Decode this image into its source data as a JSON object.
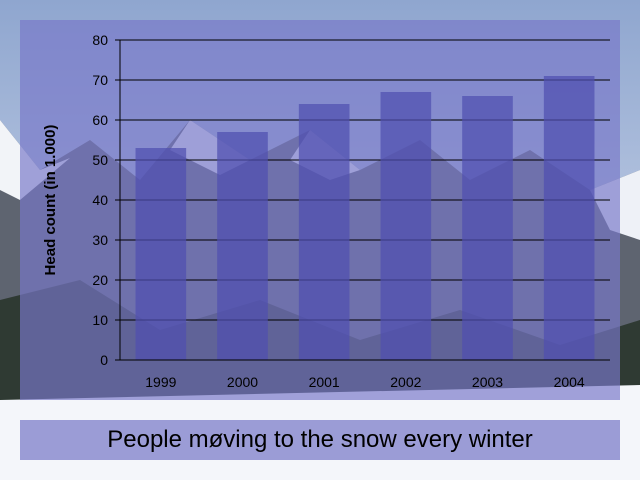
{
  "slide": {
    "caption": "People møving to the snow every winter"
  },
  "colors": {
    "bar": "#4f4fb0",
    "gridline": "#000000",
    "panel": "#7878c8"
  },
  "chart_data": {
    "type": "bar",
    "categories": [
      "1999",
      "2000",
      "2001",
      "2002",
      "2003",
      "2004"
    ],
    "values": [
      53,
      57,
      64,
      67,
      66,
      71
    ],
    "title": "",
    "xlabel": "",
    "ylabel": "Head count (in 1.000)",
    "ylim": [
      0,
      80
    ],
    "yticks": [
      0,
      10,
      20,
      30,
      40,
      50,
      60,
      70,
      80
    ],
    "grid": true,
    "legend": "none"
  }
}
